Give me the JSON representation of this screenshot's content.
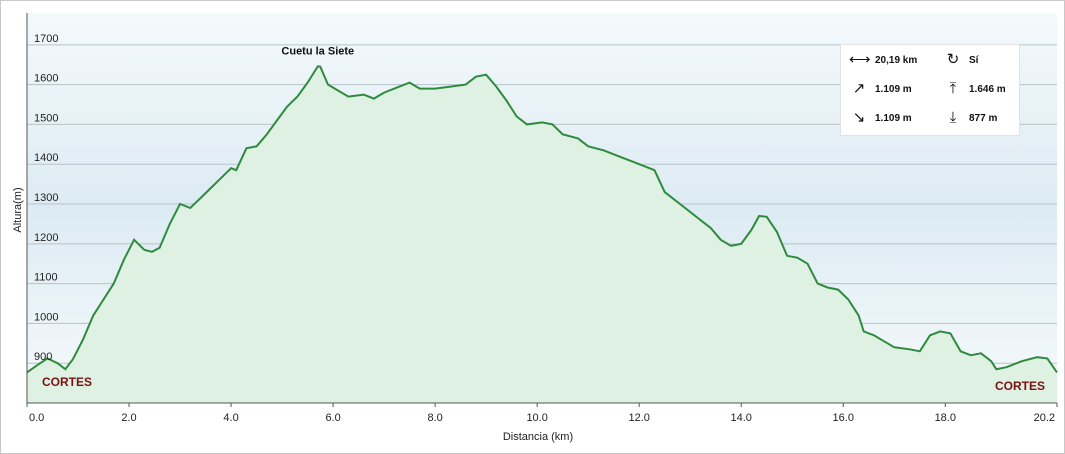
{
  "chart_data": {
    "type": "area",
    "xlabel": "Distancia  (km)",
    "ylabel": "Altura(m)",
    "xlim": [
      0,
      20.19
    ],
    "ylim": [
      800,
      1780
    ],
    "x_ticks": [
      "0.0",
      "2.0",
      "4.0",
      "6.0",
      "8.0",
      "10.0",
      "12.0",
      "14.0",
      "16.0",
      "18.0",
      "20.2"
    ],
    "y_ticks": [
      "900",
      "1000",
      "1100",
      "1200",
      "1300",
      "1400",
      "1500",
      "1600",
      "1700"
    ],
    "grid": "horizontal",
    "line_color": "#2e8b3e",
    "area_color": "#dff1e2",
    "points": [
      [
        0.0,
        877
      ],
      [
        0.2,
        895
      ],
      [
        0.4,
        912
      ],
      [
        0.6,
        900
      ],
      [
        0.75,
        885
      ],
      [
        0.9,
        910
      ],
      [
        1.1,
        960
      ],
      [
        1.3,
        1020
      ],
      [
        1.5,
        1060
      ],
      [
        1.7,
        1100
      ],
      [
        1.9,
        1160
      ],
      [
        2.1,
        1210
      ],
      [
        2.3,
        1185
      ],
      [
        2.45,
        1180
      ],
      [
        2.6,
        1190
      ],
      [
        2.8,
        1250
      ],
      [
        3.0,
        1300
      ],
      [
        3.2,
        1290
      ],
      [
        3.4,
        1315
      ],
      [
        3.6,
        1340
      ],
      [
        3.8,
        1365
      ],
      [
        4.0,
        1390
      ],
      [
        4.1,
        1385
      ],
      [
        4.3,
        1440
      ],
      [
        4.5,
        1445
      ],
      [
        4.7,
        1475
      ],
      [
        4.9,
        1510
      ],
      [
        5.1,
        1545
      ],
      [
        5.3,
        1570
      ],
      [
        5.5,
        1605
      ],
      [
        5.7,
        1646
      ],
      [
        5.75,
        1645
      ],
      [
        5.9,
        1600
      ],
      [
        6.1,
        1585
      ],
      [
        6.3,
        1570
      ],
      [
        6.6,
        1575
      ],
      [
        6.8,
        1565
      ],
      [
        7.0,
        1580
      ],
      [
        7.3,
        1595
      ],
      [
        7.5,
        1605
      ],
      [
        7.7,
        1590
      ],
      [
        8.0,
        1590
      ],
      [
        8.3,
        1595
      ],
      [
        8.6,
        1600
      ],
      [
        8.8,
        1620
      ],
      [
        9.0,
        1625
      ],
      [
        9.2,
        1595
      ],
      [
        9.4,
        1560
      ],
      [
        9.6,
        1520
      ],
      [
        9.8,
        1500
      ],
      [
        10.1,
        1505
      ],
      [
        10.3,
        1500
      ],
      [
        10.5,
        1475
      ],
      [
        10.8,
        1465
      ],
      [
        11.0,
        1445
      ],
      [
        11.3,
        1435
      ],
      [
        11.6,
        1420
      ],
      [
        11.9,
        1405
      ],
      [
        12.1,
        1395
      ],
      [
        12.3,
        1385
      ],
      [
        12.5,
        1330
      ],
      [
        12.8,
        1300
      ],
      [
        13.1,
        1270
      ],
      [
        13.4,
        1240
      ],
      [
        13.6,
        1210
      ],
      [
        13.8,
        1195
      ],
      [
        14.0,
        1200
      ],
      [
        14.2,
        1235
      ],
      [
        14.35,
        1270
      ],
      [
        14.5,
        1268
      ],
      [
        14.7,
        1230
      ],
      [
        14.9,
        1170
      ],
      [
        15.1,
        1165
      ],
      [
        15.3,
        1150
      ],
      [
        15.5,
        1100
      ],
      [
        15.7,
        1090
      ],
      [
        15.9,
        1085
      ],
      [
        16.1,
        1060
      ],
      [
        16.3,
        1020
      ],
      [
        16.4,
        980
      ],
      [
        16.6,
        970
      ],
      [
        16.8,
        955
      ],
      [
        17.0,
        940
      ],
      [
        17.3,
        935
      ],
      [
        17.5,
        930
      ],
      [
        17.7,
        970
      ],
      [
        17.9,
        980
      ],
      [
        18.1,
        975
      ],
      [
        18.3,
        930
      ],
      [
        18.5,
        920
      ],
      [
        18.7,
        925
      ],
      [
        18.9,
        905
      ],
      [
        19.0,
        885
      ],
      [
        19.2,
        890
      ],
      [
        19.5,
        905
      ],
      [
        19.8,
        915
      ],
      [
        20.0,
        912
      ],
      [
        20.19,
        877
      ]
    ],
    "annotations": [
      {
        "label": "Cuetu la Siete",
        "x": 5.7,
        "y": 1646
      }
    ],
    "endpoint_labels": {
      "start": "CORTES",
      "end": "CORTES"
    }
  },
  "stats": {
    "distance": "20,19 km",
    "loop": "Sí",
    "ascent": "1.109 m",
    "max_altitude": "1.646 m",
    "descent": "1.109 m",
    "min_altitude": "877 m"
  }
}
